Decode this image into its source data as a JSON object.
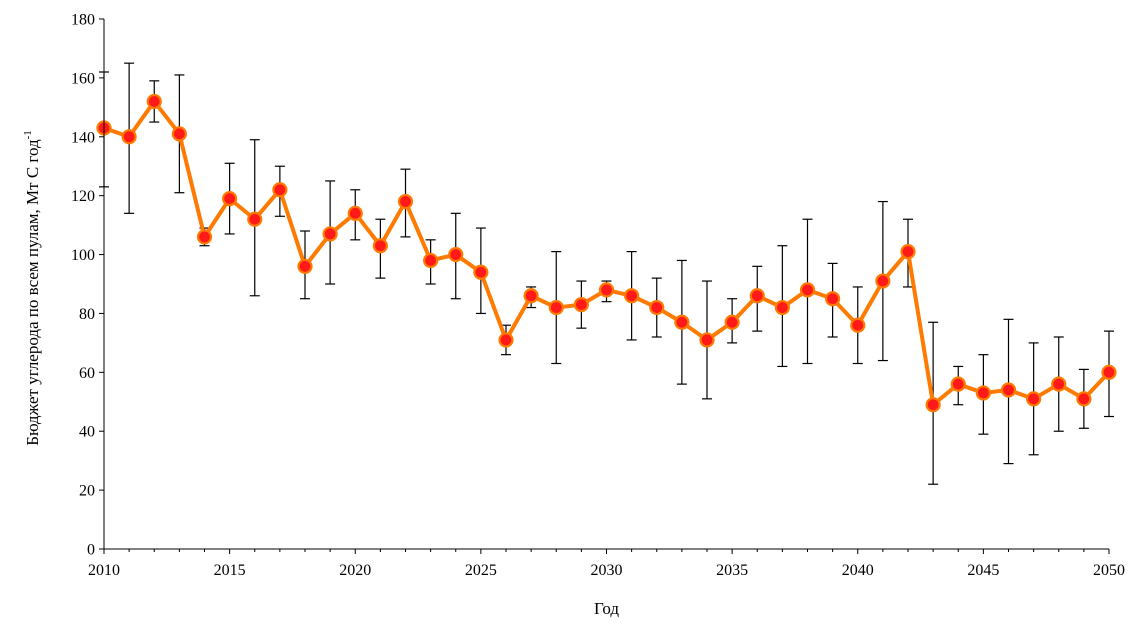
{
  "chart_data": {
    "type": "line",
    "title": "",
    "xlabel": "Год",
    "ylabel": "Бюджет углерода по всем пулам, Мт С год",
    "ylabel_superscript": "-1",
    "xlim": [
      2010,
      2050
    ],
    "ylim": [
      0,
      180
    ],
    "x_ticks": [
      2010,
      2015,
      2020,
      2025,
      2030,
      2035,
      2040,
      2045,
      2050
    ],
    "y_ticks": [
      0,
      20,
      40,
      60,
      80,
      100,
      120,
      140,
      160,
      180
    ],
    "grid": false,
    "legend": "none",
    "colors": {
      "line": "#ff7a00",
      "marker_fill": "#ff1a1a",
      "error_bar": "#000000"
    },
    "series": [
      {
        "x": [
          2010,
          2011,
          2012,
          2013,
          2014,
          2015,
          2016,
          2017,
          2018,
          2019,
          2020,
          2021,
          2022,
          2023,
          2024,
          2025,
          2026,
          2027,
          2028,
          2029,
          2030,
          2031,
          2032,
          2033,
          2034,
          2035,
          2036,
          2037,
          2038,
          2039,
          2040,
          2041,
          2042,
          2043,
          2044,
          2045,
          2046,
          2047,
          2048,
          2049,
          2050
        ],
        "y": [
          143,
          140,
          152,
          141,
          106,
          119,
          112,
          122,
          96,
          107,
          114,
          103,
          118,
          98,
          100,
          94,
          71,
          86,
          82,
          83,
          88,
          86,
          82,
          77,
          71,
          77,
          86,
          82,
          88,
          85,
          76,
          91,
          101,
          49,
          56,
          53,
          54,
          51,
          56,
          51,
          60
        ],
        "err_low": [
          123,
          114,
          145,
          121,
          103,
          107,
          86,
          113,
          85,
          90,
          105,
          92,
          106,
          90,
          85,
          80,
          66,
          82,
          63,
          75,
          84,
          71,
          72,
          56,
          51,
          70,
          74,
          62,
          63,
          72,
          63,
          64,
          89,
          22,
          49,
          39,
          29,
          32,
          40,
          41,
          45
        ],
        "err_high": [
          162,
          165,
          159,
          161,
          109,
          131,
          139,
          130,
          108,
          125,
          122,
          112,
          129,
          105,
          114,
          109,
          76,
          89,
          101,
          91,
          91,
          101,
          92,
          98,
          91,
          85,
          96,
          103,
          112,
          97,
          89,
          118,
          112,
          77,
          62,
          66,
          78,
          70,
          72,
          61,
          74
        ]
      }
    ]
  }
}
